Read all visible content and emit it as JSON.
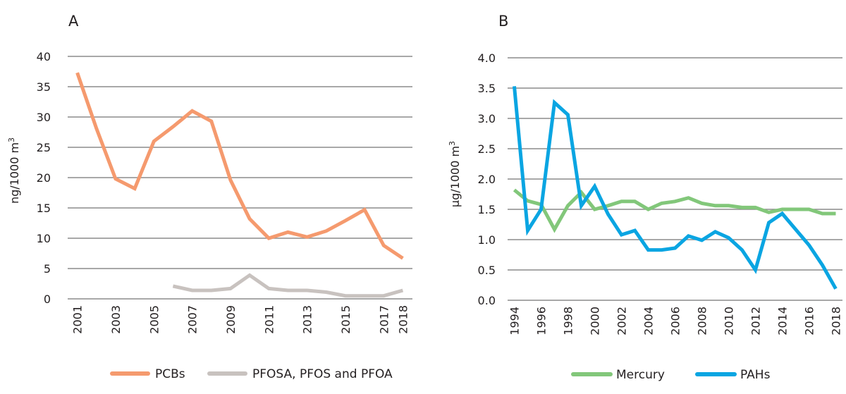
{
  "chart_data": [
    {
      "panel": "A",
      "type": "line",
      "title": "A",
      "xlabel": "",
      "ylabel": "ng/1000 m³",
      "ylim": [
        0,
        40
      ],
      "yticks": [
        "0",
        "5",
        "10",
        "15",
        "20",
        "25",
        "30",
        "35",
        "40"
      ],
      "ytick_values": [
        0,
        5,
        10,
        15,
        20,
        25,
        30,
        35,
        40
      ],
      "x": [
        2001,
        2002,
        2003,
        2004,
        2005,
        2006,
        2007,
        2008,
        2009,
        2010,
        2011,
        2012,
        2013,
        2014,
        2015,
        2016,
        2017,
        2018
      ],
      "xtick_labels": [
        "2001",
        "2003",
        "2005",
        "2007",
        "2009",
        "2011",
        "2013",
        "2015",
        "2017",
        "2018"
      ],
      "grid": true,
      "legend_position": "bottom",
      "series": [
        {
          "name": "PCBs",
          "color": "#F59A6E",
          "values": [
            37.3,
            28.1,
            19.8,
            18.2,
            26.0,
            28.4,
            31.0,
            29.3,
            19.6,
            13.2,
            10.0,
            11.0,
            10.2,
            11.2,
            12.9,
            14.7,
            8.8,
            6.7
          ]
        },
        {
          "name": "PFOSA, PFOS and PFOA",
          "color": "#C8C2BF",
          "values": [
            null,
            null,
            null,
            null,
            null,
            2.1,
            1.4,
            1.4,
            1.7,
            3.9,
            1.7,
            1.4,
            1.4,
            1.1,
            0.5,
            0.5,
            0.5,
            1.4
          ]
        }
      ]
    },
    {
      "panel": "B",
      "type": "line",
      "title": "B",
      "xlabel": "",
      "ylabel": "µg/1000 m³",
      "ylim": [
        0,
        4.0
      ],
      "yticks": [
        "0.0",
        "0.5",
        "1.0",
        "1.5",
        "2.0",
        "2.5",
        "3.0",
        "3.5",
        "4.0"
      ],
      "ytick_values": [
        0,
        0.5,
        1.0,
        1.5,
        2.0,
        2.5,
        3.0,
        3.5,
        4.0
      ],
      "x": [
        1994,
        1995,
        1996,
        1997,
        1998,
        1999,
        2000,
        2001,
        2002,
        2003,
        2004,
        2005,
        2006,
        2007,
        2008,
        2009,
        2010,
        2011,
        2012,
        2013,
        2014,
        2015,
        2016,
        2017,
        2018
      ],
      "xtick_labels": [
        "1994",
        "1996",
        "1998",
        "2000",
        "2002",
        "2004",
        "2006",
        "2008",
        "2010",
        "2012",
        "2014",
        "2016",
        "2018"
      ],
      "grid": true,
      "legend_position": "bottom",
      "series": [
        {
          "name": "Mercury",
          "color": "#82C77A",
          "values": [
            1.82,
            1.64,
            1.58,
            1.17,
            1.56,
            1.78,
            1.5,
            1.56,
            1.63,
            1.63,
            1.5,
            1.6,
            1.63,
            1.69,
            1.6,
            1.56,
            1.56,
            1.53,
            1.53,
            1.45,
            1.5,
            1.5,
            1.5,
            1.43,
            1.43
          ]
        },
        {
          "name": "PAHs",
          "color": "#0AA5E2",
          "values": [
            3.53,
            1.15,
            1.5,
            3.26,
            3.06,
            1.56,
            1.88,
            1.42,
            1.08,
            1.15,
            0.83,
            0.83,
            0.86,
            1.06,
            0.99,
            1.13,
            1.03,
            0.83,
            0.5,
            1.28,
            1.43,
            1.17,
            0.91,
            0.58,
            0.19
          ]
        }
      ]
    }
  ]
}
